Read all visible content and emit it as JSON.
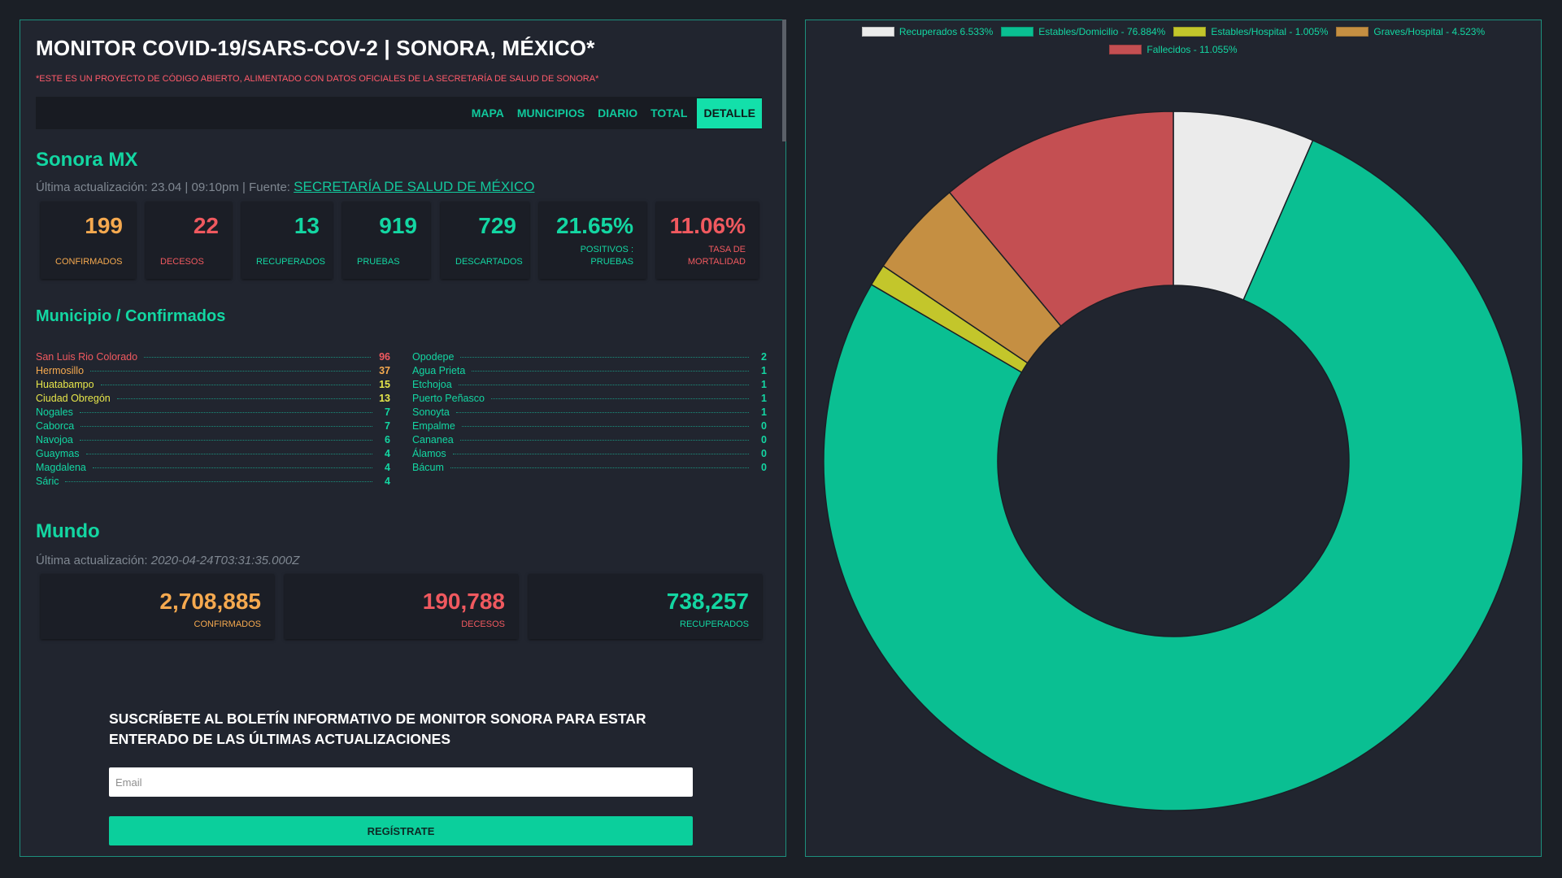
{
  "header": {
    "title": "MONITOR COVID-19/SARS-COV-2 | SONORA, MÉXICO*",
    "subtitle": "*ESTE ES UN PROYECTO DE CÓDIGO ABIERTO, ALIMENTADO CON DATOS OFICIALES DE LA SECRETARÍA DE SALUD DE SONORA*"
  },
  "nav": {
    "items": [
      "MAPA",
      "MUNICIPIOS",
      "DIARIO",
      "TOTAL",
      "DETALLE"
    ],
    "active": "DETALLE"
  },
  "sonora": {
    "title": "Sonora MX",
    "updated_prefix": "Última actualización: 23.04 | 09:10pm | Fuente: ",
    "source_link": "SECRETARÍA DE SALUD DE MÉXICO",
    "stats": [
      {
        "value": "199",
        "label": "CONFIRMADOS",
        "color": "#f5a94f"
      },
      {
        "value": "22",
        "label": "DECESOS",
        "color": "#f0595f"
      },
      {
        "value": "13",
        "label": "RECUPERADOS",
        "color": "#13d6a2"
      },
      {
        "value": "919",
        "label": "PRUEBAS",
        "color": "#13d6a2"
      },
      {
        "value": "729",
        "label": "DESCARTADOS",
        "color": "#13d6a2"
      },
      {
        "value": "21.65%",
        "label": "POSITIVOS : PRUEBAS",
        "color": "#13d6a2"
      },
      {
        "value": "11.06%",
        "label": "TASA DE MORTALIDAD",
        "color": "#f0595f"
      }
    ]
  },
  "municipios": {
    "title": "Municipio / Confirmados",
    "col1": [
      {
        "name": "San Luis Rio Colorado",
        "value": "96",
        "color": "#f0595f"
      },
      {
        "name": "Hermosillo",
        "value": "37",
        "color": "#f5a94f"
      },
      {
        "name": "Huatabampo",
        "value": "15",
        "color": "#e6e64a"
      },
      {
        "name": "Ciudad Obregón",
        "value": "13",
        "color": "#e6e64a"
      },
      {
        "name": "Nogales",
        "value": "7",
        "color": "#13d6a2"
      },
      {
        "name": "Caborca",
        "value": "7",
        "color": "#13d6a2"
      },
      {
        "name": "Navojoa",
        "value": "6",
        "color": "#13d6a2"
      },
      {
        "name": "Guaymas",
        "value": "4",
        "color": "#13d6a2"
      },
      {
        "name": "Magdalena",
        "value": "4",
        "color": "#13d6a2"
      },
      {
        "name": "Sáric",
        "value": "4",
        "color": "#13d6a2"
      }
    ],
    "col2": [
      {
        "name": "Opodepe",
        "value": "2",
        "color": "#13d6a2"
      },
      {
        "name": "Agua Prieta",
        "value": "1",
        "color": "#13d6a2"
      },
      {
        "name": "Etchojoa",
        "value": "1",
        "color": "#13d6a2"
      },
      {
        "name": "Puerto Peñasco",
        "value": "1",
        "color": "#13d6a2"
      },
      {
        "name": "Sonoyta",
        "value": "1",
        "color": "#13d6a2"
      },
      {
        "name": "Empalme",
        "value": "0",
        "color": "#13d6a2"
      },
      {
        "name": "Cananea",
        "value": "0",
        "color": "#13d6a2"
      },
      {
        "name": "Álamos",
        "value": "0",
        "color": "#13d6a2"
      },
      {
        "name": "Bácum",
        "value": "0",
        "color": "#13d6a2"
      }
    ]
  },
  "mundo": {
    "title": "Mundo",
    "updated_prefix": "Última actualización: ",
    "updated_value": "2020-04-24T03:31:35.000Z",
    "stats": [
      {
        "value": "2,708,885",
        "label": "CONFIRMADOS",
        "color": "#f5a94f"
      },
      {
        "value": "190,788",
        "label": "DECESOS",
        "color": "#f0595f"
      },
      {
        "value": "738,257",
        "label": "RECUPERADOS",
        "color": "#13d6a2"
      }
    ]
  },
  "newsletter": {
    "heading": "SUSCRÍBETE AL BOLETÍN INFORMATIVO DE MONITOR SONORA PARA ESTAR ENTERADO DE LAS ÚLTIMAS ACTUALIZACIONES",
    "email_placeholder": "Email",
    "email_value": "",
    "button_label": "REGÍSTRATE"
  },
  "chart_data": {
    "type": "pie",
    "variant": "doughnut",
    "legend_position": "top",
    "categories": [
      "Recuperados",
      "Estables/Domicilio",
      "Estables/Hospital",
      "Graves/Hospital",
      "Fallecidos"
    ],
    "legend_labels": [
      "Recuperados 6.533%",
      "Estables/Domicilio - 76.884%",
      "Estables/Hospital - 1.005%",
      "Graves/Hospital - 4.523%",
      "Fallecidos - 11.055%"
    ],
    "values": [
      6.533,
      76.884,
      1.005,
      4.523,
      11.055
    ],
    "colors": [
      "#ebebeb",
      "#0abf92",
      "#c3c62b",
      "#c58f42",
      "#c44f52"
    ]
  }
}
